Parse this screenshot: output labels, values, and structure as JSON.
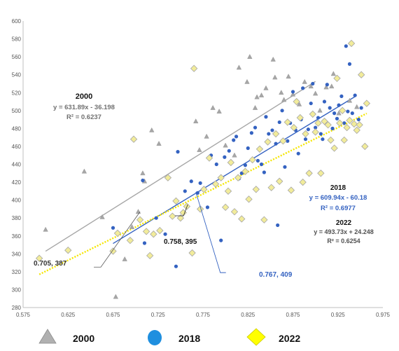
{
  "chart_data": {
    "type": "scatter",
    "title": "",
    "xlabel": "",
    "ylabel": "",
    "xlim": [
      0.575,
      0.975
    ],
    "ylim": [
      280,
      600
    ],
    "x_ticks": [
      0.575,
      0.625,
      0.675,
      0.725,
      0.775,
      0.825,
      0.875,
      0.925,
      0.975
    ],
    "x_tick_labels": [
      "0.575",
      "0.625",
      "0.675",
      "0.725",
      "0.775",
      "0.825",
      "0.875",
      "0.925",
      "0.975"
    ],
    "y_ticks": [
      280,
      300,
      320,
      340,
      360,
      380,
      400,
      420,
      440,
      460,
      480,
      500,
      520,
      540,
      560,
      580,
      600
    ],
    "grid": false,
    "legend_position": "bottom",
    "series": [
      {
        "name": "2000",
        "marker": "triangle",
        "color": "#a6a6a6",
        "trend": {
          "slope": 631.89,
          "intercept": -36.198,
          "x_range": [
            0.6,
            0.9
          ],
          "color": "#a6a6a6",
          "style": "solid"
        },
        "points": [
          [
            0.6,
            367
          ],
          [
            0.643,
            432
          ],
          [
            0.663,
            381
          ],
          [
            0.678,
            292
          ],
          [
            0.688,
            334
          ],
          [
            0.696,
            370
          ],
          [
            0.703,
            387
          ],
          [
            0.708,
            430
          ],
          [
            0.71,
            421
          ],
          [
            0.718,
            478
          ],
          [
            0.726,
            463
          ],
          [
            0.767,
            488
          ],
          [
            0.771,
            456
          ],
          [
            0.779,
            471
          ],
          [
            0.786,
            503
          ],
          [
            0.793,
            499
          ],
          [
            0.8,
            461
          ],
          [
            0.81,
            450
          ],
          [
            0.815,
            548
          ],
          [
            0.824,
            532
          ],
          [
            0.827,
            560
          ],
          [
            0.833,
            503
          ],
          [
            0.835,
            515
          ],
          [
            0.84,
            517
          ],
          [
            0.845,
            525
          ],
          [
            0.853,
            557
          ],
          [
            0.855,
            537
          ],
          [
            0.862,
            520
          ],
          [
            0.865,
            512
          ],
          [
            0.87,
            538
          ],
          [
            0.875,
            518
          ],
          [
            0.882,
            507
          ],
          [
            0.888,
            532
          ],
          [
            0.895,
            527
          ],
          [
            0.9,
            519
          ],
          [
            0.905,
            500
          ],
          [
            0.912,
            526
          ],
          [
            0.918,
            527
          ],
          [
            0.92,
            541
          ],
          [
            0.926,
            497
          ],
          [
            0.938,
            511
          ],
          [
            0.946,
            504
          ]
        ]
      },
      {
        "name": "2018",
        "marker": "circle",
        "color": "#3462c1",
        "trend": {
          "slope": 609.94,
          "intercept": -60.18,
          "x_range": [
            0.675,
            0.945
          ],
          "color": "#3462c1",
          "style": "solid"
        },
        "points": [
          [
            0.675,
            369
          ],
          [
            0.708,
            422
          ],
          [
            0.71,
            352
          ],
          [
            0.723,
            380
          ],
          [
            0.733,
            362
          ],
          [
            0.745,
            326
          ],
          [
            0.747,
            454
          ],
          [
            0.755,
            410
          ],
          [
            0.762,
            421
          ],
          [
            0.769,
            408
          ],
          [
            0.772,
            419
          ],
          [
            0.78,
            392
          ],
          [
            0.784,
            450
          ],
          [
            0.79,
            440
          ],
          [
            0.795,
            355
          ],
          [
            0.799,
            448
          ],
          [
            0.804,
            455
          ],
          [
            0.809,
            467
          ],
          [
            0.812,
            471
          ],
          [
            0.815,
            424
          ],
          [
            0.818,
            430
          ],
          [
            0.822,
            439
          ],
          [
            0.825,
            458
          ],
          [
            0.829,
            475
          ],
          [
            0.833,
            481
          ],
          [
            0.836,
            444
          ],
          [
            0.84,
            440
          ],
          [
            0.843,
            431
          ],
          [
            0.845,
            493
          ],
          [
            0.848,
            474
          ],
          [
            0.852,
            478
          ],
          [
            0.856,
            463
          ],
          [
            0.858,
            372
          ],
          [
            0.86,
            487
          ],
          [
            0.863,
            500
          ],
          [
            0.866,
            437
          ],
          [
            0.869,
            466
          ],
          [
            0.872,
            486
          ],
          [
            0.875,
            521
          ],
          [
            0.878,
            478
          ],
          [
            0.881,
            452
          ],
          [
            0.884,
            490
          ],
          [
            0.886,
            525
          ],
          [
            0.889,
            468
          ],
          [
            0.892,
            479
          ],
          [
            0.895,
            508
          ],
          [
            0.897,
            530
          ],
          [
            0.9,
            481
          ],
          [
            0.903,
            492
          ],
          [
            0.906,
            474
          ],
          [
            0.908,
            468
          ],
          [
            0.91,
            510
          ],
          [
            0.913,
            529
          ],
          [
            0.916,
            503
          ],
          [
            0.919,
            480
          ],
          [
            0.921,
            497
          ],
          [
            0.924,
            491
          ],
          [
            0.926,
            506
          ],
          [
            0.929,
            516
          ],
          [
            0.932,
            486
          ],
          [
            0.934,
            572
          ],
          [
            0.936,
            499
          ],
          [
            0.938,
            552
          ],
          [
            0.941,
            497
          ],
          [
            0.944,
            517
          ],
          [
            0.948,
            490
          ],
          [
            0.951,
            503
          ]
        ]
      },
      {
        "name": "2022",
        "marker": "diamond",
        "color": "#f2ec9a",
        "trend": {
          "slope": 493.73,
          "intercept": 24.248,
          "x_range": [
            0.593,
            0.957
          ],
          "color": "#f5e600",
          "style": "dotted"
        },
        "points": [
          [
            0.593,
            335
          ],
          [
            0.625,
            344
          ],
          [
            0.675,
            343
          ],
          [
            0.68,
            363
          ],
          [
            0.694,
            355
          ],
          [
            0.698,
            468
          ],
          [
            0.705,
            378
          ],
          [
            0.712,
            365
          ],
          [
            0.716,
            338
          ],
          [
            0.72,
            362
          ],
          [
            0.727,
            366
          ],
          [
            0.736,
            425
          ],
          [
            0.741,
            382
          ],
          [
            0.745,
            399
          ],
          [
            0.75,
            380
          ],
          [
            0.753,
            386
          ],
          [
            0.757,
            393
          ],
          [
            0.763,
            341
          ],
          [
            0.765,
            547
          ],
          [
            0.772,
            390
          ],
          [
            0.776,
            412
          ],
          [
            0.782,
            447
          ],
          [
            0.789,
            418
          ],
          [
            0.795,
            425
          ],
          [
            0.8,
            392
          ],
          [
            0.803,
            410
          ],
          [
            0.806,
            442
          ],
          [
            0.81,
            387
          ],
          [
            0.814,
            425
          ],
          [
            0.818,
            379
          ],
          [
            0.822,
            432
          ],
          [
            0.826,
            401
          ],
          [
            0.83,
            445
          ],
          [
            0.834,
            412
          ],
          [
            0.838,
            457
          ],
          [
            0.843,
            378
          ],
          [
            0.847,
            465
          ],
          [
            0.851,
            414
          ],
          [
            0.856,
            474
          ],
          [
            0.86,
            421
          ],
          [
            0.864,
            466
          ],
          [
            0.869,
            487
          ],
          [
            0.873,
            411
          ],
          [
            0.876,
            481
          ],
          [
            0.879,
            510
          ],
          [
            0.883,
            492
          ],
          [
            0.886,
            420
          ],
          [
            0.889,
            474
          ],
          [
            0.893,
            430
          ],
          [
            0.897,
            496
          ],
          [
            0.9,
            476
          ],
          [
            0.903,
            486
          ],
          [
            0.906,
            430
          ],
          [
            0.91,
            488
          ],
          [
            0.914,
            484
          ],
          [
            0.917,
            467
          ],
          [
            0.921,
            458
          ],
          [
            0.924,
            536
          ],
          [
            0.927,
            486
          ],
          [
            0.93,
            500
          ],
          [
            0.932,
            467
          ],
          [
            0.935,
            481
          ],
          [
            0.938,
            489
          ],
          [
            0.94,
            575
          ],
          [
            0.943,
            485
          ],
          [
            0.946,
            478
          ],
          [
            0.949,
            484
          ],
          [
            0.951,
            540
          ],
          [
            0.955,
            460
          ],
          [
            0.957,
            508
          ]
        ]
      }
    ],
    "annotations": [
      {
        "key": "eq2000",
        "lines": [
          "2000",
          "y = 631.89x - 36.198",
          "R² = 0.6237"
        ],
        "color": "#707070"
      },
      {
        "key": "eq2018",
        "lines": [
          "2018",
          "y = 609.94x - 60.18",
          "R² = 0.6977"
        ],
        "color": "#3462c1"
      },
      {
        "key": "eq2022",
        "lines": [
          "2022",
          "y = 493.73x + 24.248",
          "R² = 0.6254"
        ],
        "color": "#505050"
      }
    ],
    "callouts": [
      {
        "label": "0.705, 387",
        "point": [
          0.705,
          387
        ],
        "color": "#333333"
      },
      {
        "label": "0.758, 395",
        "point": [
          0.758,
          395
        ],
        "color": "#111111"
      },
      {
        "label": "0.767, 409",
        "point": [
          0.767,
          409
        ],
        "color": "#3462c1"
      }
    ]
  }
}
